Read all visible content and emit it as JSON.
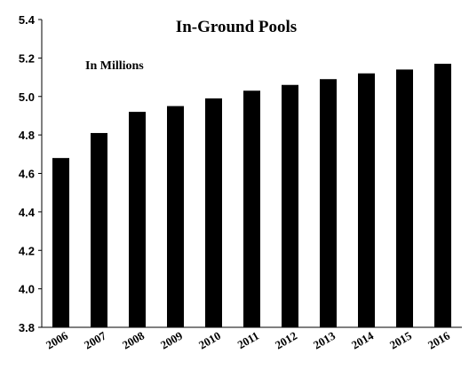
{
  "chart_data": {
    "type": "bar",
    "title": "In-Ground Pools",
    "annotation": "In Millions",
    "xlabel": "",
    "ylabel": "",
    "categories": [
      "2006",
      "2007",
      "2008",
      "2009",
      "2010",
      "2011",
      "2012",
      "2013",
      "2014",
      "2015",
      "2016"
    ],
    "values": [
      4.68,
      4.81,
      4.92,
      4.95,
      4.99,
      5.03,
      5.06,
      5.09,
      5.12,
      5.14,
      5.17
    ],
    "ylim": [
      3.8,
      5.4
    ],
    "yticks": [
      "3.8",
      "4.0",
      "4.2",
      "4.4",
      "4.6",
      "4.8",
      "5.0",
      "5.2",
      "5.4"
    ],
    "grid": false,
    "legend": "none",
    "bar_color": "#000000"
  }
}
